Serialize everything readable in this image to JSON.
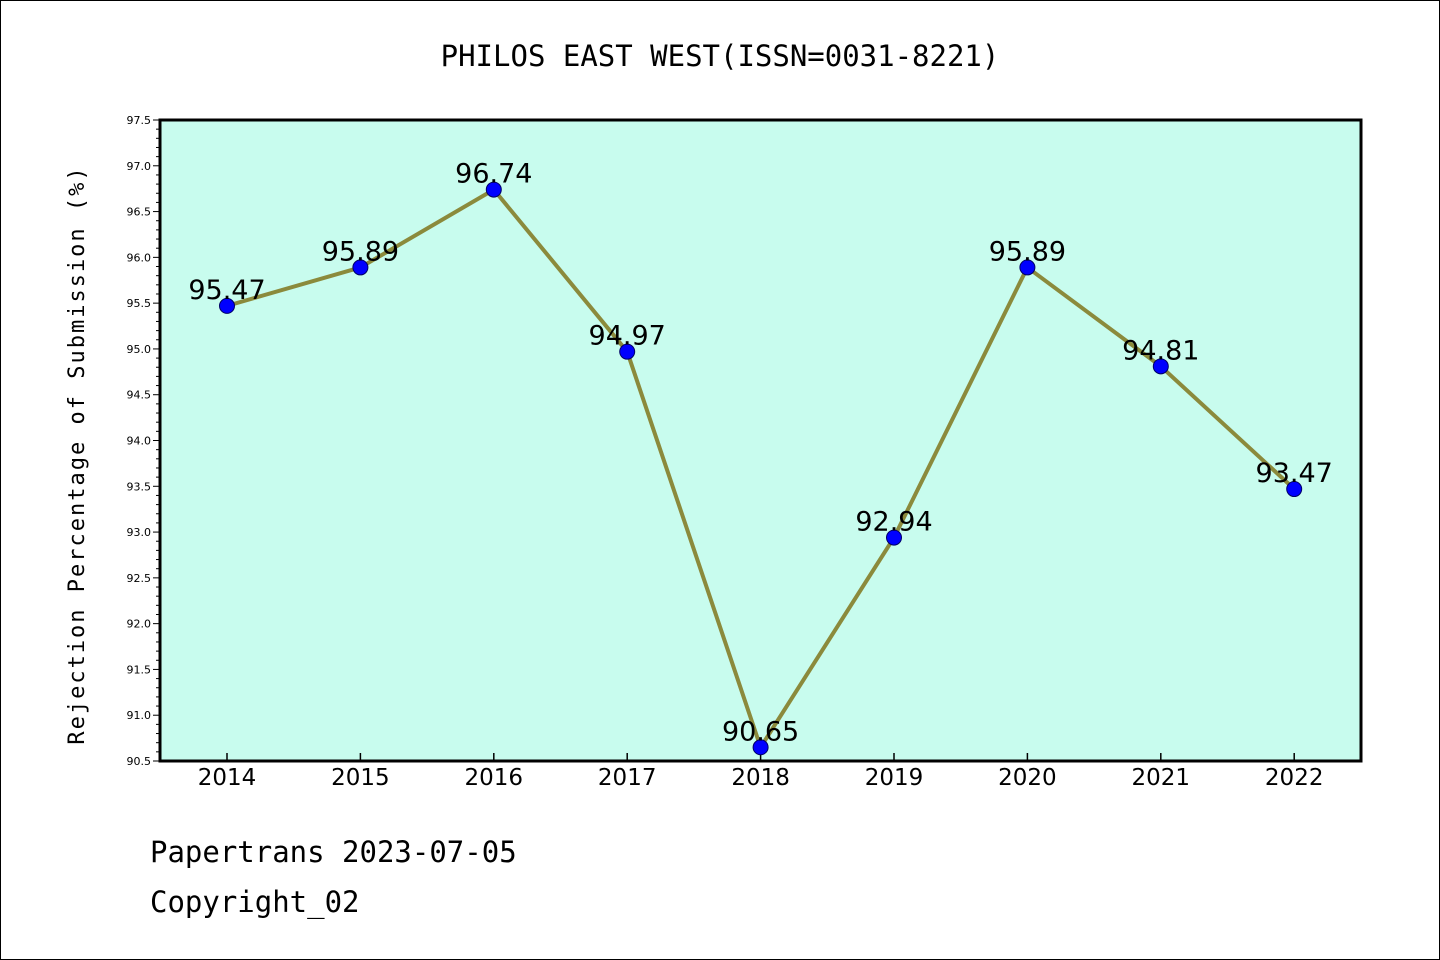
{
  "chart_data": {
    "type": "line",
    "title": "PHILOS EAST WEST(ISSN=0031-8221)",
    "xlabel": "",
    "ylabel": "Rejection Percentage of Submission (%)",
    "categories": [
      "2014",
      "2015",
      "2016",
      "2017",
      "2018",
      "2019",
      "2020",
      "2021",
      "2022"
    ],
    "series": [
      {
        "values": [
          95.47,
          95.89,
          96.74,
          94.97,
          90.65,
          92.94,
          95.89,
          94.81,
          93.47
        ],
        "labels": [
          "95.47",
          "95.89",
          "96.74",
          "94.97",
          "90.65",
          "92.94",
          "95.89",
          "94.81",
          "93.47"
        ],
        "line_color": "#8b8a3c",
        "marker_color": "#0000ff"
      }
    ],
    "ylim": [
      90.5,
      97.5
    ],
    "yticks": [
      "90.5",
      "91.0",
      "91.5",
      "92.0",
      "92.5",
      "93.0",
      "93.5",
      "94.0",
      "94.5",
      "95.0",
      "95.5",
      "96.0",
      "96.5",
      "97.0",
      "97.5"
    ],
    "plot_background": "#c8fcee",
    "grid": false,
    "legend": "none"
  },
  "footer": {
    "line1": "Papertrans 2023-07-05",
    "line2": "Copyright_02"
  }
}
